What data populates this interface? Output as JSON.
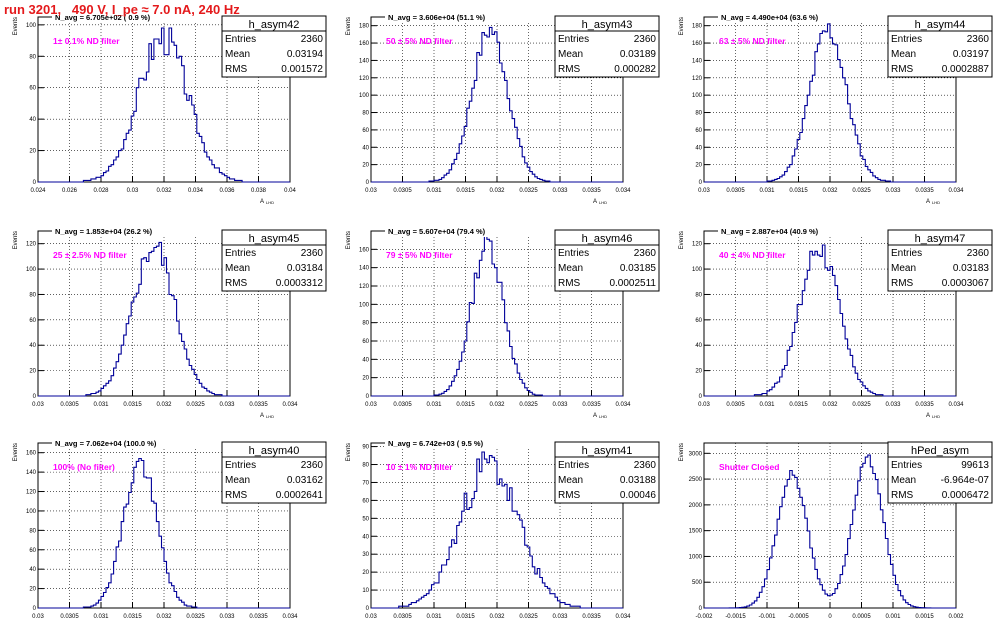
{
  "run_title": "run 3201,   490 V, I_pe ≈ 7.0 nA, 240 Hz",
  "colors": {
    "hist": "#000099",
    "label": "#ff00ff",
    "title": "#e41a1c",
    "grid": "#000000"
  },
  "common": {
    "ylabel": "Events",
    "xlabel": "A",
    "xlabel_sub": "LHD",
    "stat_entries": "Entries",
    "stat_mean": "Mean",
    "stat_rms": "RMS"
  },
  "chart_data": [
    {
      "type": "bar",
      "name": "h_asym42",
      "navg": "N_avg = 6.705e+02 ( 0.9 %)",
      "label": "1± 0.1% ND filter",
      "entries": "2360",
      "mean": "0.03194",
      "rms": "0.001572",
      "xlim": [
        0.024,
        0.04
      ],
      "ylim": [
        0,
        105
      ],
      "xticks": [
        "0.024",
        "0.026",
        "0.028",
        "0.03",
        "0.032",
        "0.034",
        "0.036",
        "0.038",
        "0.04"
      ],
      "yticks": [
        "0",
        "20",
        "40",
        "60",
        "80",
        "100"
      ],
      "mu": 0.03194,
      "sigma": 0.001572,
      "peak": 92,
      "noise": 0.12,
      "seed": 3
    },
    {
      "type": "bar",
      "name": "h_asym43",
      "navg": "N_avg = 3.606e+04 (51.1 %)",
      "label": "50 ± 5% ND filter",
      "entries": "2360",
      "mean": "0.03189",
      "rms": "0.000282",
      "xlim": [
        0.03,
        0.034
      ],
      "ylim": [
        0,
        190
      ],
      "xticks": [
        "0.03",
        "0.0305",
        "0.031",
        "0.0315",
        "0.032",
        "0.0325",
        "0.033",
        "0.0335",
        "0.034"
      ],
      "yticks": [
        "0",
        "20",
        "40",
        "60",
        "80",
        "100",
        "120",
        "140",
        "160",
        "180"
      ],
      "mu": 0.03189,
      "sigma": 0.000282,
      "peak": 175,
      "noise": 0.08,
      "seed": 7
    },
    {
      "type": "bar",
      "name": "h_asym44",
      "navg": "N_avg = 4.490e+04 (63.6 %)",
      "label": "63 ± 5% ND filter",
      "entries": "2360",
      "mean": "0.03197",
      "rms": "0.0002887",
      "xlim": [
        0.03,
        0.034
      ],
      "ylim": [
        0,
        190
      ],
      "xticks": [
        "0.03",
        "0.0305",
        "0.031",
        "0.0315",
        "0.032",
        "0.0325",
        "0.033",
        "0.0335",
        "0.034"
      ],
      "yticks": [
        "0",
        "20",
        "40",
        "60",
        "80",
        "100",
        "120",
        "140",
        "160",
        "180"
      ],
      "mu": 0.03197,
      "sigma": 0.0002887,
      "peak": 175,
      "noise": 0.08,
      "seed": 11
    },
    {
      "type": "bar",
      "name": "h_asym45",
      "navg": "N_avg = 1.853e+04 (26.2 %)",
      "label": "25 ± 2.5% ND filter",
      "entries": "2360",
      "mean": "0.03184",
      "rms": "0.0003312",
      "xlim": [
        0.03,
        0.034
      ],
      "ylim": [
        0,
        130
      ],
      "xticks": [
        "0.03",
        "0.0305",
        "0.031",
        "0.0315",
        "0.032",
        "0.0325",
        "0.033",
        "0.0335",
        "0.034"
      ],
      "yticks": [
        "0",
        "20",
        "40",
        "60",
        "80",
        "100",
        "120"
      ],
      "mu": 0.03184,
      "sigma": 0.0003312,
      "peak": 118,
      "noise": 0.1,
      "seed": 5
    },
    {
      "type": "bar",
      "name": "h_asym46",
      "navg": "N_avg = 5.607e+04 (79.4 %)",
      "label": "79 ± 5% ND filter",
      "entries": "2360",
      "mean": "0.03185",
      "rms": "0.0002511",
      "xlim": [
        0.03,
        0.034
      ],
      "ylim": [
        0,
        180
      ],
      "xticks": [
        "0.03",
        "0.0305",
        "0.031",
        "0.0315",
        "0.032",
        "0.0325",
        "0.033",
        "0.0335",
        "0.034"
      ],
      "yticks": [
        "0",
        "20",
        "40",
        "60",
        "80",
        "100",
        "120",
        "140",
        "160"
      ],
      "mu": 0.03185,
      "sigma": 0.0002511,
      "peak": 168,
      "noise": 0.09,
      "seed": 13
    },
    {
      "type": "bar",
      "name": "h_asym47",
      "navg": "N_avg = 2.887e+04 (40.9 %)",
      "label": "40 ± 4% ND filter",
      "entries": "2360",
      "mean": "0.03183",
      "rms": "0.0003067",
      "xlim": [
        0.03,
        0.034
      ],
      "ylim": [
        0,
        130
      ],
      "xticks": [
        "0.03",
        "0.0305",
        "0.031",
        "0.0315",
        "0.032",
        "0.0325",
        "0.033",
        "0.0335",
        "0.034"
      ],
      "yticks": [
        "0",
        "20",
        "40",
        "60",
        "80",
        "100",
        "120"
      ],
      "mu": 0.03183,
      "sigma": 0.0003067,
      "peak": 118,
      "noise": 0.1,
      "seed": 17
    },
    {
      "type": "bar",
      "name": "h_asym40",
      "navg": "N_avg = 7.062e+04 (100.0 %)",
      "label": "100% (No filter)",
      "entries": "2360",
      "mean": "0.03162",
      "rms": "0.0002641",
      "xlim": [
        0.03,
        0.034
      ],
      "ylim": [
        0,
        170
      ],
      "xticks": [
        "0.03",
        "0.0305",
        "0.031",
        "0.0315",
        "0.032",
        "0.0325",
        "0.033",
        "0.0335",
        "0.034"
      ],
      "yticks": [
        "0",
        "20",
        "40",
        "60",
        "80",
        "100",
        "120",
        "140",
        "160"
      ],
      "mu": 0.03162,
      "sigma": 0.0002641,
      "peak": 150,
      "noise": 0.09,
      "seed": 19
    },
    {
      "type": "bar",
      "name": "h_asym41",
      "navg": "N_avg = 6.742e+03 ( 9.5 %)",
      "label": "10 ± 1% ND filter",
      "entries": "2360",
      "mean": "0.03188",
      "rms": "0.00046",
      "xlim": [
        0.03,
        0.034
      ],
      "ylim": [
        0,
        92
      ],
      "xticks": [
        "0.03",
        "0.0305",
        "0.031",
        "0.0315",
        "0.032",
        "0.0325",
        "0.033",
        "0.0335",
        "0.034"
      ],
      "yticks": [
        "0",
        "10",
        "20",
        "30",
        "40",
        "50",
        "60",
        "70",
        "80",
        "90"
      ],
      "mu": 0.03188,
      "sigma": 0.00046,
      "peak": 80,
      "noise": 0.14,
      "seed": 23
    },
    {
      "type": "bar",
      "name": "hPed_asym",
      "navg": "",
      "label": "Shutter Closed",
      "entries": "99613",
      "mean": "-6.964e-07",
      "rms": "0.0006472",
      "xlim": [
        -0.002,
        0.002
      ],
      "ylim": [
        0,
        3200
      ],
      "xticks": [
        "-0.002",
        "-0.0015",
        "-0.001",
        "-0.0005",
        "0",
        "0.0005",
        "0.001",
        "0.0015",
        "0.002"
      ],
      "yticks": [
        "0",
        "500",
        "1000",
        "1500",
        "2000",
        "2500",
        "3000"
      ],
      "bimodal": true,
      "mu1": -0.0006,
      "mu2": 0.0006,
      "sigma": 0.00024,
      "peak": 2900,
      "noise": 0.03,
      "seed": 29
    }
  ]
}
